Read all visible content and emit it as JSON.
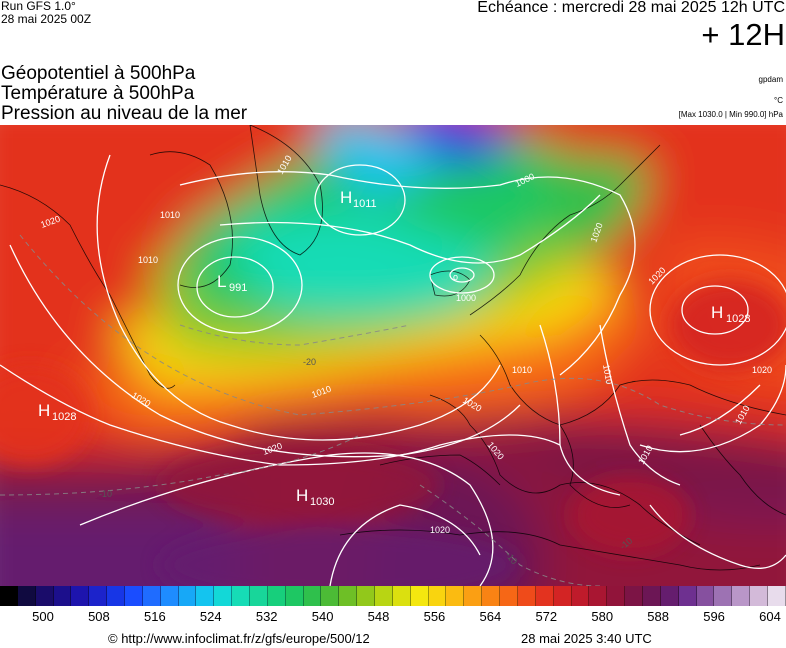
{
  "header": {
    "run_label": "Run GFS 1.0°",
    "run_date": "28 mai 2025 00Z",
    "echeance": "Echéance : mercredi 28 mai 2025 12h UTC",
    "offset": "+ 12H"
  },
  "titles": {
    "geopotential": "Géopotentiel à 500hPa",
    "temperature": "Température à 500hPa",
    "pressure": "Pression au niveau de la mer"
  },
  "units": {
    "geopotential": "gpdam",
    "temperature": "°C",
    "pressure": "[Max 1030.0 | Min 990.0] hPa"
  },
  "map": {
    "pressure_centers": [
      {
        "type": "H",
        "value": "1011"
      },
      {
        "type": "L",
        "value": "991"
      },
      {
        "type": "H",
        "value": "1028"
      },
      {
        "type": "H",
        "value": "1028"
      },
      {
        "type": "H",
        "value": "1030"
      }
    ],
    "isobar_labels": [
      "1020",
      "1010",
      "1010",
      "1010",
      "1000",
      "1000",
      "1020",
      "1010",
      "1020",
      "1010",
      "1020",
      "1020",
      "1020",
      "1010",
      "1020",
      "1020",
      "1010",
      "1020",
      "1010"
    ],
    "isotherm_labels": [
      "-20",
      "-10",
      "-10",
      "-10"
    ]
  },
  "colorscale": {
    "colors": [
      "#000000",
      "#100a40",
      "#1a0c6a",
      "#1c0f8c",
      "#1d14ad",
      "#1c23cb",
      "#1736e6",
      "#1a4dff",
      "#1f6cff",
      "#1e8cff",
      "#17a8f7",
      "#14c4ef",
      "#13d8d7",
      "#16dcb6",
      "#18d69a",
      "#17cf7c",
      "#1ec763",
      "#2fc04c",
      "#4cbb36",
      "#6ebf26",
      "#92c81b",
      "#b8d513",
      "#dbe00f",
      "#f4e70f",
      "#f9d40f",
      "#fbbb11",
      "#fb9f13",
      "#f98314",
      "#f66716",
      "#ef4b1a",
      "#e3331f",
      "#d32424",
      "#bf1b2b",
      "#a91632",
      "#91143a",
      "#7c1445",
      "#6c1655",
      "#651d6e",
      "#6e3090",
      "#86509f",
      "#9d72b3",
      "#b996c8",
      "#d3bad9",
      "#e8dcec"
    ],
    "ticks": [
      "500",
      "508",
      "516",
      "524",
      "532",
      "540",
      "548",
      "556",
      "564",
      "572",
      "580",
      "588",
      "596",
      "604"
    ]
  },
  "footer": {
    "url": "© http://www.infoclimat.fr/z/gfs/europe/500/12",
    "time": "28 mai 2025  3:40 UTC"
  }
}
